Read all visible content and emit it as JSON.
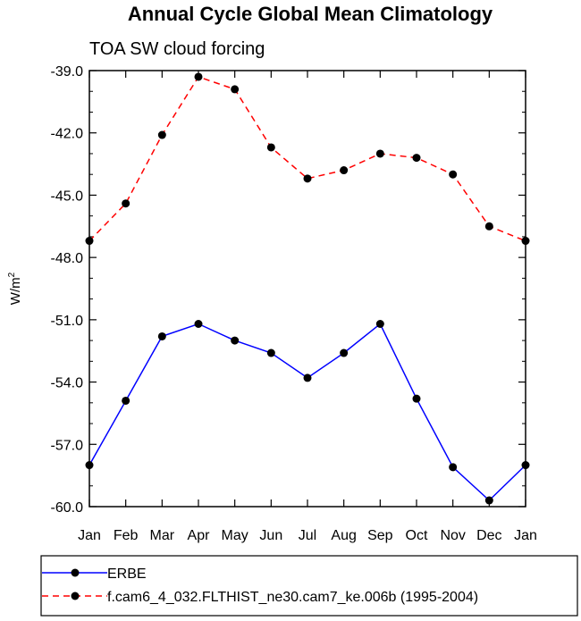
{
  "chart_data": {
    "type": "line",
    "title": "Annual Cycle Global Mean Climatology",
    "subtitle": "TOA SW cloud forcing",
    "xlabel": "",
    "ylabel": "W/m",
    "ylabel_superscript": "2",
    "categories": [
      "Jan",
      "Feb",
      "Mar",
      "Apr",
      "May",
      "Jun",
      "Jul",
      "Aug",
      "Sep",
      "Oct",
      "Nov",
      "Dec",
      "Jan"
    ],
    "ylim": [
      -60.0,
      -39.0
    ],
    "yticks": [
      -39.0,
      -42.0,
      -45.0,
      -48.0,
      -51.0,
      -54.0,
      -57.0,
      -60.0
    ],
    "ytick_labels": [
      "-39.0",
      "-42.0",
      "-45.0",
      "-48.0",
      "-51.0",
      "-54.0",
      "-57.0",
      "-60.0"
    ],
    "series": [
      {
        "name": "ERBE",
        "color": "#0000ff",
        "dash": "solid",
        "values": [
          -58.0,
          -54.9,
          -51.8,
          -51.2,
          -52.0,
          -52.6,
          -53.8,
          -52.6,
          -51.2,
          -54.8,
          -58.1,
          -59.7,
          -58.0
        ]
      },
      {
        "name": "f.cam6_4_032.FLTHIST_ne30.cam7_ke.006b (1995-2004)",
        "color": "#ff0000",
        "dash": "dashed",
        "values": [
          -47.2,
          -45.4,
          -42.1,
          -39.3,
          -39.9,
          -42.7,
          -44.2,
          -43.8,
          -43.0,
          -43.2,
          -44.0,
          -46.5,
          -47.2
        ]
      }
    ]
  }
}
